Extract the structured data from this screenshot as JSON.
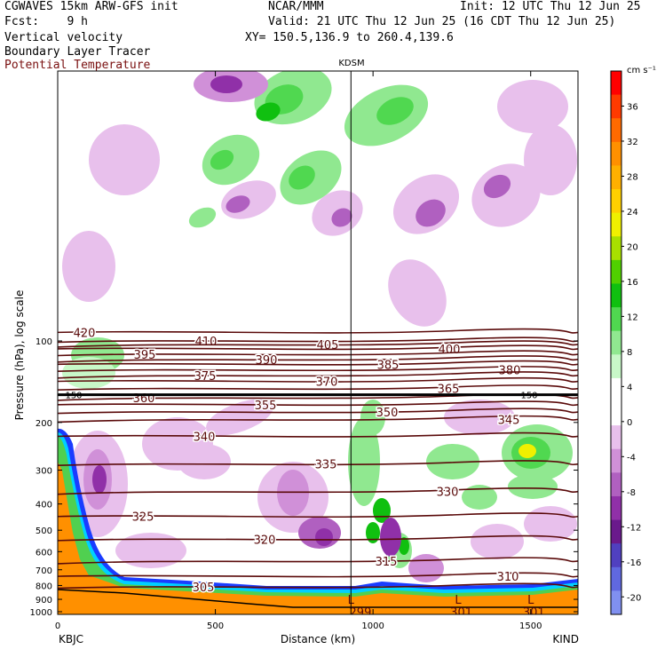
{
  "header": {
    "model": "CGWAVES 15km ARW-GFS init",
    "org": "NCAR/MMM",
    "init": "Init: 12 UTC Thu 12 Jun 25",
    "fcst": "Fcst:    9 h",
    "valid": "Valid: 21 UTC Thu 12 Jun 25 (16 CDT Thu 12 Jun 25)",
    "field1": "Vertical velocity",
    "xy": "XY= 150.5,136.9 to 260.4,139.6",
    "field2": "Boundary Layer Tracer",
    "field3": "Potential Temperature"
  },
  "chart_data": {
    "type": "heatmap",
    "station_marker": "KDSM",
    "xlabel": "Distance (km)",
    "ylabel": "Pressure (hPa), log scale",
    "x_ticks": [
      "0",
      "500",
      "1000",
      "1500"
    ],
    "x_tick_values": [
      0,
      500,
      1000,
      1500
    ],
    "xlim": [
      0,
      1650
    ],
    "station_km": 930,
    "left_end": "KBJC",
    "right_end": "KIND",
    "y_ticks": [
      "100",
      "200",
      "300",
      "400",
      "500",
      "600",
      "700",
      "800",
      "900",
      "1000"
    ],
    "y_tick_values": [
      100,
      200,
      300,
      400,
      500,
      600,
      700,
      800,
      900,
      1000
    ],
    "y_scale": "log",
    "colorbar_unit": "cm s⁻¹",
    "colorbar_ticks": [
      "36",
      "32",
      "28",
      "24",
      "20",
      "16",
      "12",
      "8",
      "4",
      "0",
      "-4",
      "-8",
      "-12",
      "-16",
      "-20"
    ],
    "colorbar_tick_values": [
      36,
      32,
      28,
      24,
      20,
      16,
      12,
      8,
      4,
      0,
      -4,
      -8,
      -12,
      -16,
      -20
    ],
    "colorbar_colors": [
      "#ff0000",
      "#ff3a00",
      "#ff6a00",
      "#ff9000",
      "#ffb000",
      "#ffd000",
      "#f0f000",
      "#a8e000",
      "#50d000",
      "#10c010",
      "#50d850",
      "#90e890",
      "#c8f8c8",
      "#ffffff",
      "#ffffff",
      "#e8c0ec",
      "#d090d8",
      "#b060c0",
      "#9030a8",
      "#6a1a8c",
      "#5040c0",
      "#6068e0",
      "#8090f0"
    ],
    "theta_contours": [
      {
        "label": "420",
        "p": 93
      },
      {
        "label": "410",
        "p": 100
      },
      {
        "label": "405",
        "p": 103
      },
      {
        "label": "400",
        "p": 107
      },
      {
        "label": "395",
        "p": 112
      },
      {
        "label": "390",
        "p": 117
      },
      {
        "label": "385",
        "p": 122
      },
      {
        "label": "380",
        "p": 128
      },
      {
        "label": "375",
        "p": 134
      },
      {
        "label": "370",
        "p": 141
      },
      {
        "label": "365",
        "p": 150
      },
      {
        "label": "360",
        "p": 162
      },
      {
        "label": "355",
        "p": 172
      },
      {
        "label": "350",
        "p": 183
      },
      {
        "label": "345",
        "p": 195
      },
      {
        "label": "340",
        "p": 225
      },
      {
        "label": "335",
        "p": 285
      },
      {
        "label": "330",
        "p": 360
      },
      {
        "label": "325",
        "p": 445
      },
      {
        "label": "320",
        "p": 540
      },
      {
        "label": "315",
        "p": 650
      },
      {
        "label": "310",
        "p": 740
      },
      {
        "label": "305",
        "p": 810
      }
    ],
    "label_150": "150",
    "low_labels": [
      {
        "text": "L",
        "km": 930
      },
      {
        "text": "L",
        "km": 1270
      },
      {
        "text": "L",
        "km": 1500
      }
    ],
    "surface_labels": [
      {
        "text": "299",
        "km": 960
      },
      {
        "text": "301",
        "km": 1280
      },
      {
        "text": "301",
        "km": 1510
      }
    ]
  }
}
